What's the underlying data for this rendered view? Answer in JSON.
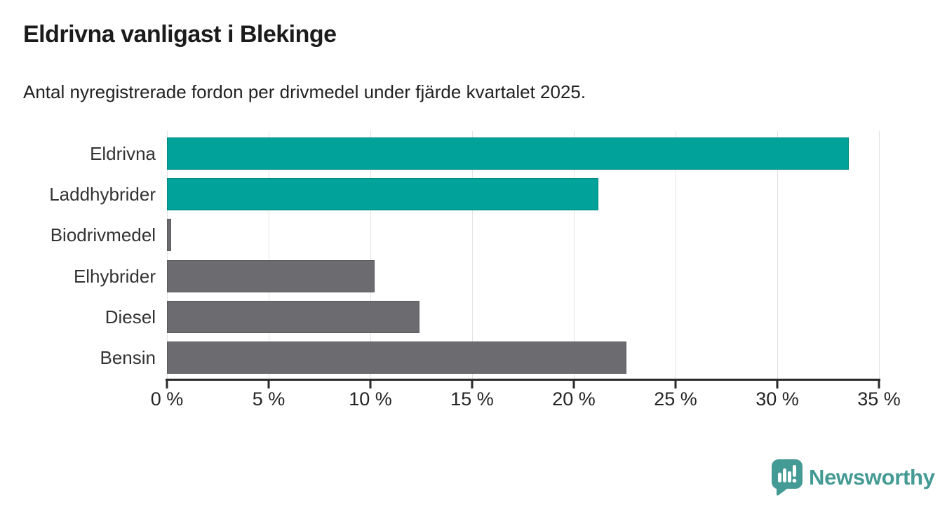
{
  "header": {
    "title": "Eldrivna vanligast i Blekinge",
    "subtitle": "Antal nyregistrerade fordon per drivmedel under fjärde kvartalet 2025."
  },
  "chart_data": {
    "type": "bar",
    "orientation": "horizontal",
    "title": "Eldrivna vanligast i Blekinge",
    "subtitle": "Antal nyregistrerade fordon per drivmedel under fjärde kvartalet 2025.",
    "categories": [
      "Eldrivna",
      "Laddhybrider",
      "Biodrivmedel",
      "Elhybrider",
      "Diesel",
      "Bensin"
    ],
    "values": [
      33.5,
      21.2,
      0.2,
      10.2,
      12.4,
      22.6
    ],
    "unit": "%",
    "xlim": [
      0,
      35
    ],
    "x_ticks": [
      0,
      5,
      10,
      15,
      20,
      25,
      30,
      35
    ],
    "x_tick_labels": [
      "0 %",
      "5 %",
      "10 %",
      "15 %",
      "20 %",
      "25 %",
      "30 %",
      "35 %"
    ],
    "grid": "vertical",
    "legend": "none",
    "bar_colors": [
      "#00a29a",
      "#00a29a",
      "#6b6b70",
      "#6b6b70",
      "#6b6b70",
      "#6b6b70"
    ],
    "highlight_color": "#00a29a",
    "default_color": "#6b6b70"
  },
  "logo": {
    "text": "Newsworthy",
    "color": "#449a94",
    "icon": "newsworthy-speech-bubble-bar-chart-icon"
  },
  "colors": {
    "background": "#ffffff",
    "axis": "#2a2a2a",
    "gridline": "#e2e2e2",
    "title_text": "#1b1b1b",
    "label_text": "#333333"
  }
}
